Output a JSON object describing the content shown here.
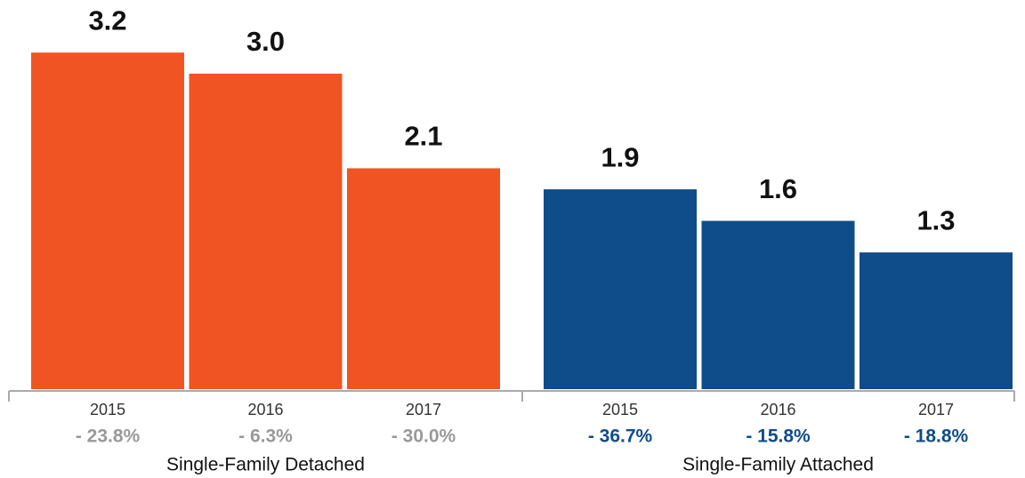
{
  "chart_data": {
    "type": "bar",
    "categories": [
      "2015",
      "2016",
      "2017"
    ],
    "series": [
      {
        "name": "Single-Family Detached",
        "color": "#f05423",
        "label_color": "#999999",
        "values": [
          3.2,
          3.0,
          2.1
        ],
        "value_labels": [
          "3.2",
          "3.0",
          "2.1"
        ],
        "change_labels": [
          "- 23.8%",
          "- 6.3%",
          "- 30.0%"
        ]
      },
      {
        "name": "Single-Family Attached",
        "color": "#0f4c8a",
        "label_color": "#0f4c8a",
        "values": [
          1.9,
          1.6,
          1.3
        ],
        "value_labels": [
          "1.9",
          "1.6",
          "1.3"
        ],
        "change_labels": [
          "- 36.7%",
          "- 15.8%",
          "- 18.8%"
        ]
      }
    ],
    "ylim": [
      0,
      3.7
    ]
  }
}
